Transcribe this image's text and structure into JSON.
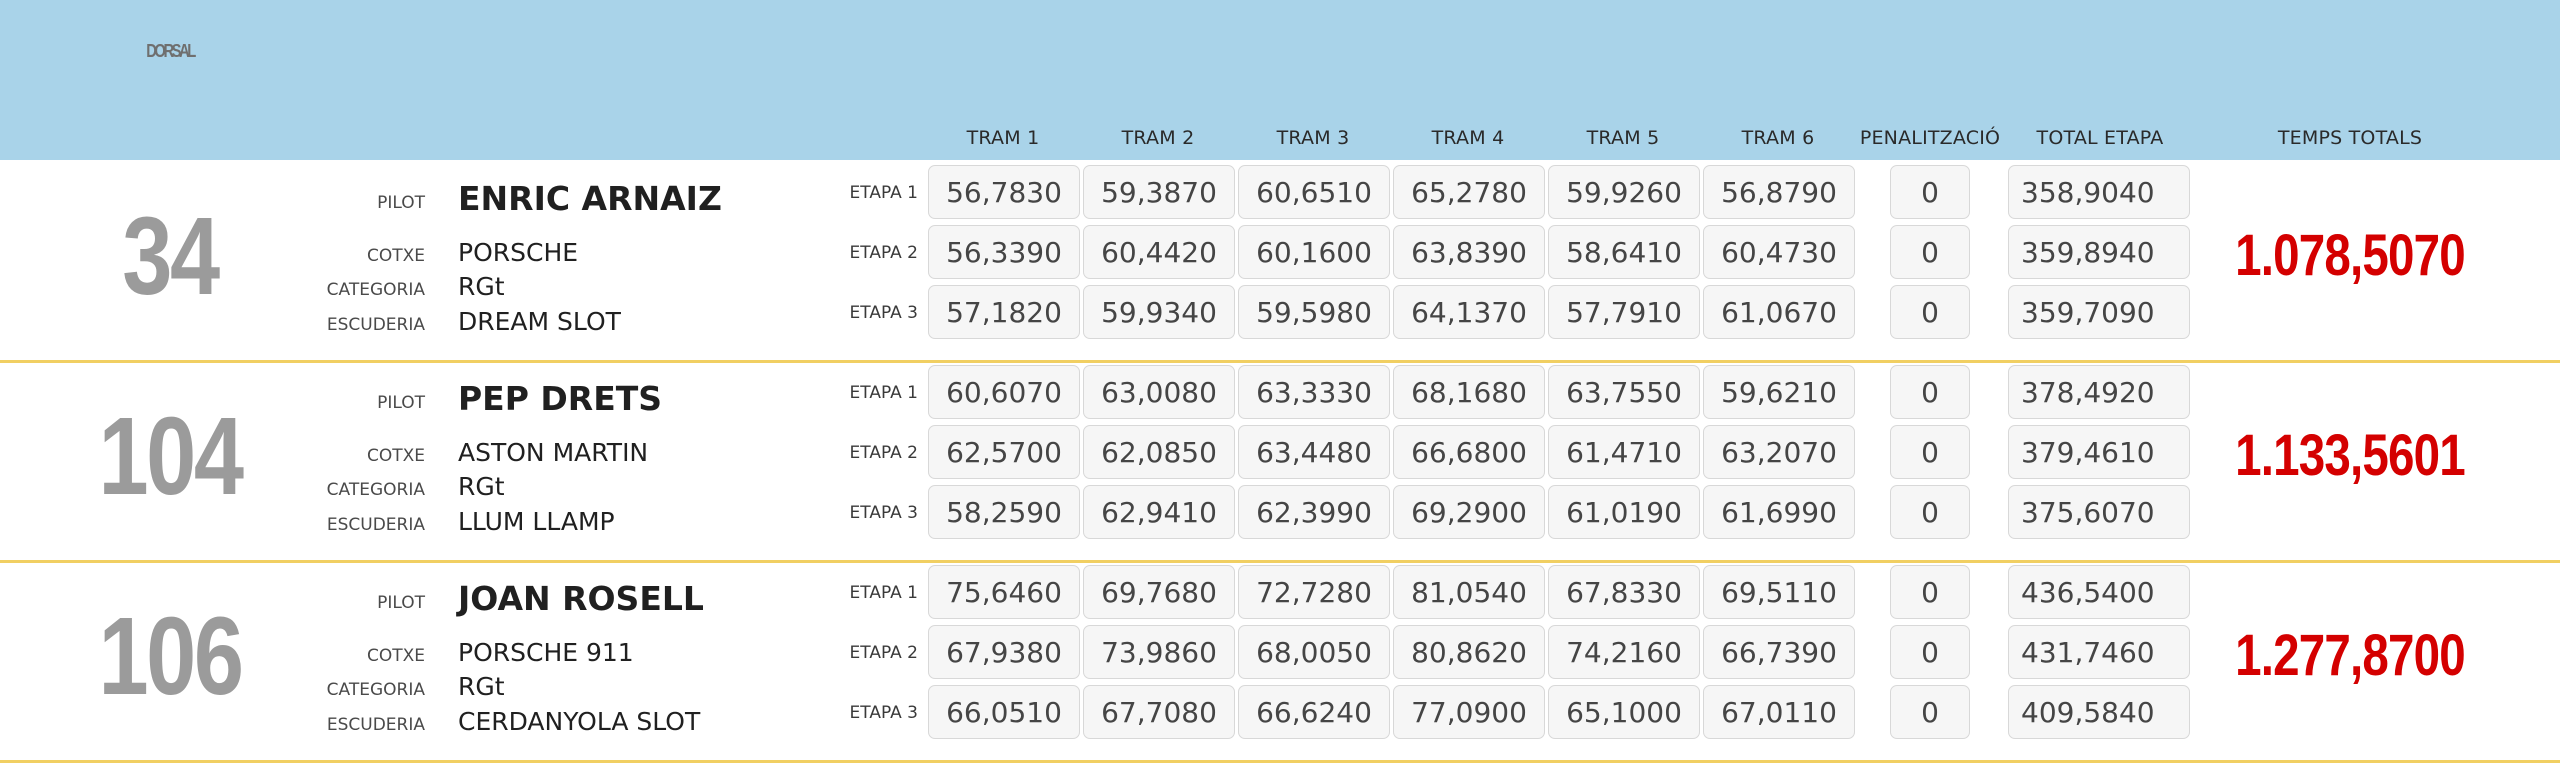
{
  "headers": {
    "dorsal": "DORSAL",
    "trams": [
      "TRAM 1",
      "TRAM 2",
      "TRAM 3",
      "TRAM 4",
      "TRAM 5",
      "TRAM 6"
    ],
    "penalitzacio": "PENALITZACIÓ",
    "total_etapa": "TOTAL ETAPA",
    "temps_totals": "TEMPS TOTALS"
  },
  "labels": {
    "pilot": "PILOT",
    "cotxe": "COTXE",
    "categoria": "CATEGORIA",
    "escuderia": "ESCUDERIA"
  },
  "entries": [
    {
      "dorsal": "34",
      "pilot": "ENRIC ARNAIZ",
      "cotxe": "PORSCHE",
      "categoria": "RGt",
      "escuderia": "DREAM SLOT",
      "temps_totals": "1.078,5070",
      "etapes": [
        {
          "label": "ETAPA 1",
          "trams": [
            "56,7830",
            "59,3870",
            "60,6510",
            "65,2780",
            "59,9260",
            "56,8790"
          ],
          "penalitzacio": "0",
          "total": "358,9040"
        },
        {
          "label": "ETAPA 2",
          "trams": [
            "56,3390",
            "60,4420",
            "60,1600",
            "63,8390",
            "58,6410",
            "60,4730"
          ],
          "penalitzacio": "0",
          "total": "359,8940"
        },
        {
          "label": "ETAPA 3",
          "trams": [
            "57,1820",
            "59,9340",
            "59,5980",
            "64,1370",
            "57,7910",
            "61,0670"
          ],
          "penalitzacio": "0",
          "total": "359,7090"
        }
      ]
    },
    {
      "dorsal": "104",
      "pilot": "PEP DRETS",
      "cotxe": "ASTON MARTIN",
      "categoria": "RGt",
      "escuderia": "LLUM LLAMP",
      "temps_totals": "1.133,5601",
      "etapes": [
        {
          "label": "ETAPA 1",
          "trams": [
            "60,6070",
            "63,0080",
            "63,3330",
            "68,1680",
            "63,7550",
            "59,6210"
          ],
          "penalitzacio": "0",
          "total": "378,4920"
        },
        {
          "label": "ETAPA 2",
          "trams": [
            "62,5700",
            "62,0850",
            "63,4480",
            "66,6800",
            "61,4710",
            "63,2070"
          ],
          "penalitzacio": "0",
          "total": "379,4610"
        },
        {
          "label": "ETAPA 3",
          "trams": [
            "58,2590",
            "62,9410",
            "62,3990",
            "69,2900",
            "61,0190",
            "61,6990"
          ],
          "penalitzacio": "0",
          "total": "375,6070"
        }
      ]
    },
    {
      "dorsal": "106",
      "pilot": "JOAN ROSELL",
      "cotxe": "PORSCHE 911",
      "categoria": "RGt",
      "escuderia": "CERDANYOLA SLOT",
      "temps_totals": "1.277,8700",
      "etapes": [
        {
          "label": "ETAPA 1",
          "trams": [
            "75,6460",
            "69,7680",
            "72,7280",
            "81,0540",
            "67,8330",
            "69,5110"
          ],
          "penalitzacio": "0",
          "total": "436,5400"
        },
        {
          "label": "ETAPA 2",
          "trams": [
            "67,9380",
            "73,9860",
            "68,0050",
            "80,8620",
            "74,2160",
            "66,7390"
          ],
          "penalitzacio": "0",
          "total": "431,7460"
        },
        {
          "label": "ETAPA 3",
          "trams": [
            "66,0510",
            "67,7080",
            "66,6240",
            "77,0900",
            "65,1000",
            "67,0110"
          ],
          "penalitzacio": "0",
          "total": "409,5840"
        }
      ]
    }
  ]
}
